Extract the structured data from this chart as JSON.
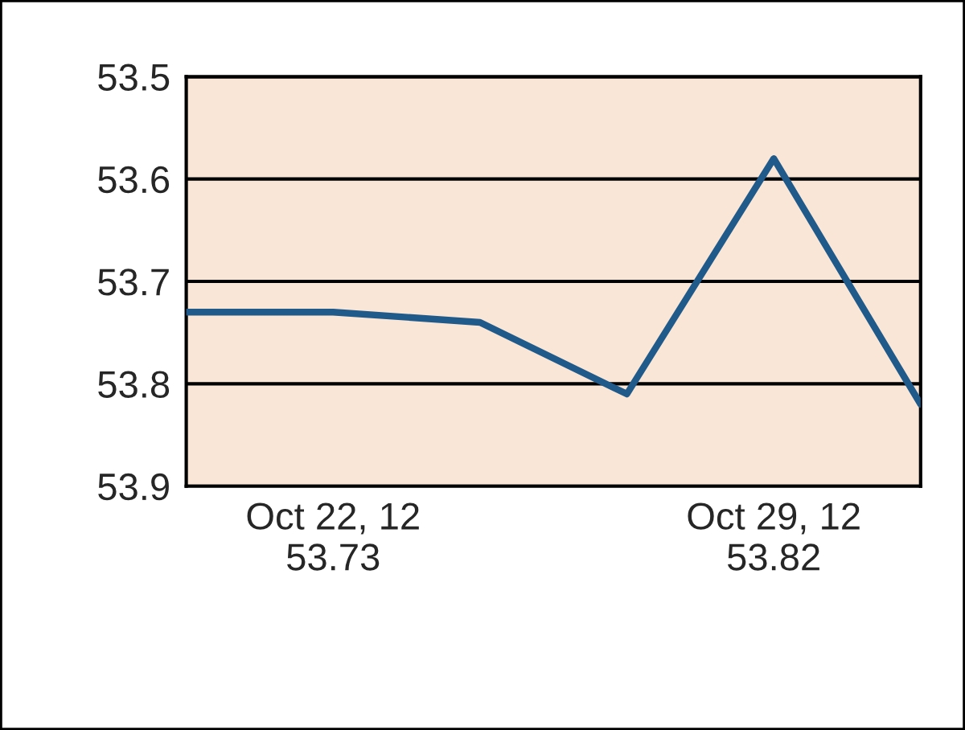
{
  "chart_data": {
    "type": "line",
    "categories": [
      null,
      "Oct 22, 12\n53.73",
      null,
      null,
      "Oct 29, 12\n53.82",
      null
    ],
    "series": [
      {
        "color": "#1f5a8a",
        "values": [
          53.73,
          53.73,
          53.74,
          53.81,
          53.58,
          53.82
        ]
      }
    ],
    "ylim": [
      53.9,
      53.5
    ],
    "yticks": [
      53.5,
      53.6,
      53.7,
      53.8,
      53.9
    ],
    "grid": "y",
    "marker": "none",
    "line_style": "solid"
  }
}
